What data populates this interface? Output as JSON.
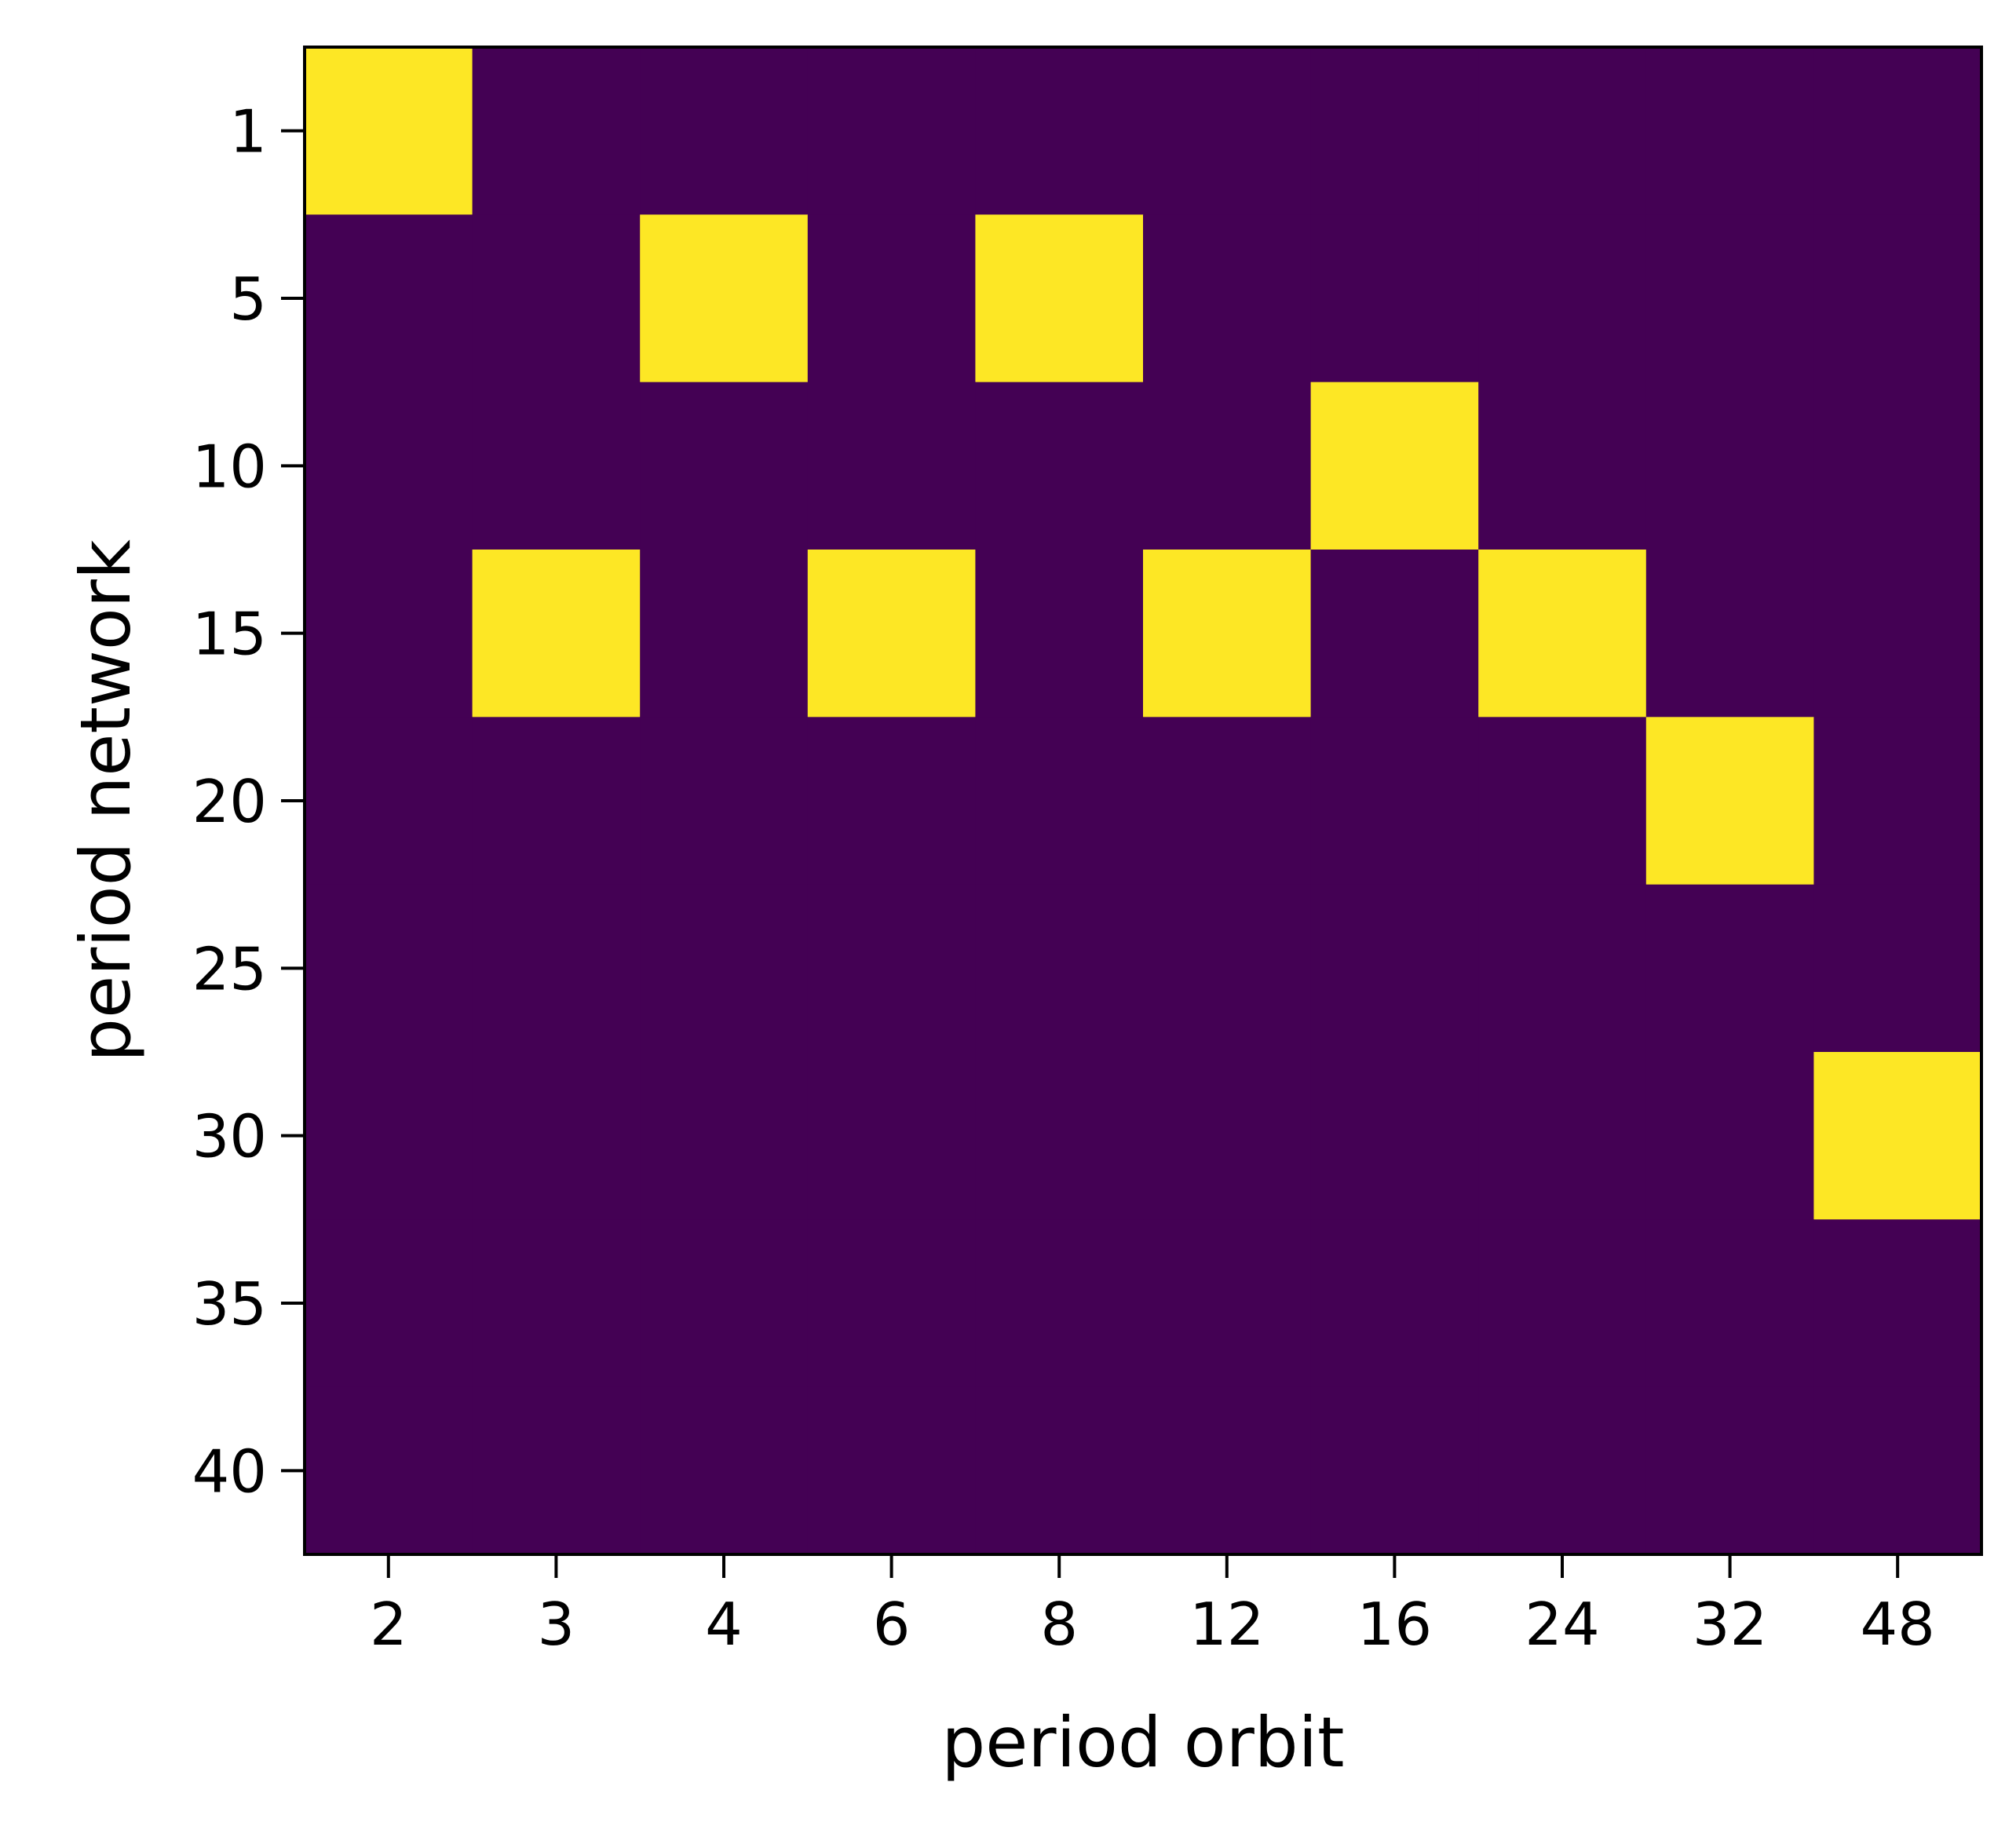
{
  "chart_data": {
    "type": "heatmap",
    "xlabel": "period orbit",
    "ylabel": "period network",
    "x_categories": [
      "2",
      "3",
      "4",
      "6",
      "8",
      "12",
      "16",
      "24",
      "32",
      "48"
    ],
    "y_ticks": [
      1,
      5,
      10,
      15,
      20,
      25,
      30,
      35,
      40
    ],
    "y_tick_labels": [
      "1",
      "5",
      "10",
      "15",
      "20",
      "25",
      "30",
      "35",
      "40"
    ],
    "row_values": [
      1,
      5,
      10,
      15,
      20,
      25,
      30,
      35,
      40
    ],
    "values": [
      [
        1,
        0,
        0,
        0,
        0,
        0,
        0,
        0,
        0,
        0
      ],
      [
        0,
        0,
        1,
        0,
        1,
        0,
        0,
        0,
        0,
        0
      ],
      [
        0,
        0,
        0,
        0,
        0,
        0,
        1,
        0,
        0,
        0
      ],
      [
        0,
        1,
        0,
        1,
        0,
        1,
        0,
        1,
        0,
        0
      ],
      [
        0,
        0,
        0,
        0,
        0,
        0,
        0,
        0,
        1,
        0
      ],
      [
        0,
        0,
        0,
        0,
        0,
        0,
        0,
        0,
        0,
        0
      ],
      [
        0,
        0,
        0,
        0,
        0,
        0,
        0,
        0,
        0,
        1
      ],
      [
        0,
        0,
        0,
        0,
        0,
        0,
        0,
        0,
        0,
        0
      ],
      [
        0,
        0,
        0,
        0,
        0,
        0,
        0,
        0,
        0,
        0
      ]
    ],
    "colormap": {
      "low": "#440154",
      "high": "#fde725"
    },
    "grid": false,
    "legend": "none"
  }
}
